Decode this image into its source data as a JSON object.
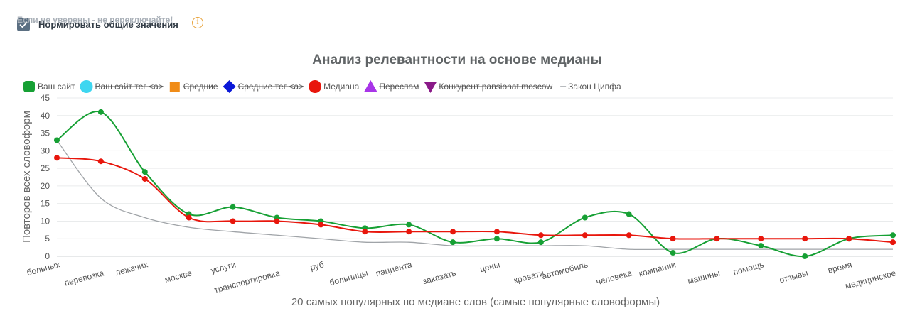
{
  "normalize": {
    "label": "Нормировать общие значения",
    "hint": "Если не уверены - не переключайте!",
    "checked": true,
    "info_icon": "info-icon"
  },
  "chart_data": {
    "type": "line",
    "title": "Анализ релевантности на основе медианы",
    "xlabel": "20 самых популярных по медиане слов (самые популярные словоформы)",
    "ylabel": "Повторов всех словоформ",
    "ylim": [
      0,
      45
    ],
    "yticks": [
      0,
      5,
      10,
      15,
      20,
      25,
      30,
      35,
      40,
      45
    ],
    "categories": [
      "больных",
      "перевозка",
      "лежачих",
      "москве",
      "услуги",
      "транспортировка",
      "руб",
      "больницы",
      "пациента",
      "заказать",
      "цены",
      "кровати",
      "автомобиль",
      "человека",
      "компании",
      "машины",
      "помощь",
      "отзывы",
      "время",
      "медицинское"
    ],
    "legend": [
      {
        "name": "Ваш сайт",
        "marker": "rounded-square",
        "color": "#16a034",
        "hidden": false
      },
      {
        "name": "Ваш сайт тег <a>",
        "marker": "circle",
        "color": "#3ed6f0",
        "hidden": true
      },
      {
        "name": "Средние",
        "marker": "square",
        "color": "#f08c18",
        "hidden": true
      },
      {
        "name": "Средние тег <a>",
        "marker": "diamond",
        "color": "#0a18d8",
        "hidden": true
      },
      {
        "name": "Медиана",
        "marker": "circle",
        "color": "#e8160c",
        "hidden": false
      },
      {
        "name": "Переспам",
        "marker": "triangle-up",
        "color": "#a835e8",
        "hidden": true
      },
      {
        "name": "Конкурент pansionat.moscow",
        "marker": "triangle-down",
        "color": "#8a1a88",
        "hidden": true
      },
      {
        "name": "Закон Ципфа",
        "marker": "line",
        "color": "#a0a4a8",
        "hidden": false
      }
    ],
    "series": [
      {
        "name": "Ваш сайт",
        "color": "#16a034",
        "markers": true,
        "values": [
          33,
          41,
          24,
          12,
          14,
          11,
          10,
          8,
          9,
          4,
          5,
          4,
          11,
          12,
          1,
          5,
          3,
          0,
          5,
          6
        ]
      },
      {
        "name": "Медиана",
        "color": "#e8160c",
        "markers": true,
        "values": [
          28,
          27,
          22,
          11,
          10,
          10,
          9,
          7,
          7,
          7,
          7,
          6,
          6,
          6,
          5,
          5,
          5,
          5,
          5,
          4
        ]
      },
      {
        "name": "Закон Ципфа",
        "color": "#a0a4a8",
        "markers": false,
        "values": [
          33,
          16.5,
          11,
          8.25,
          7,
          6,
          5,
          4,
          4,
          3,
          3,
          3,
          3,
          2,
          2,
          2,
          2,
          2,
          2,
          2
        ]
      }
    ]
  }
}
